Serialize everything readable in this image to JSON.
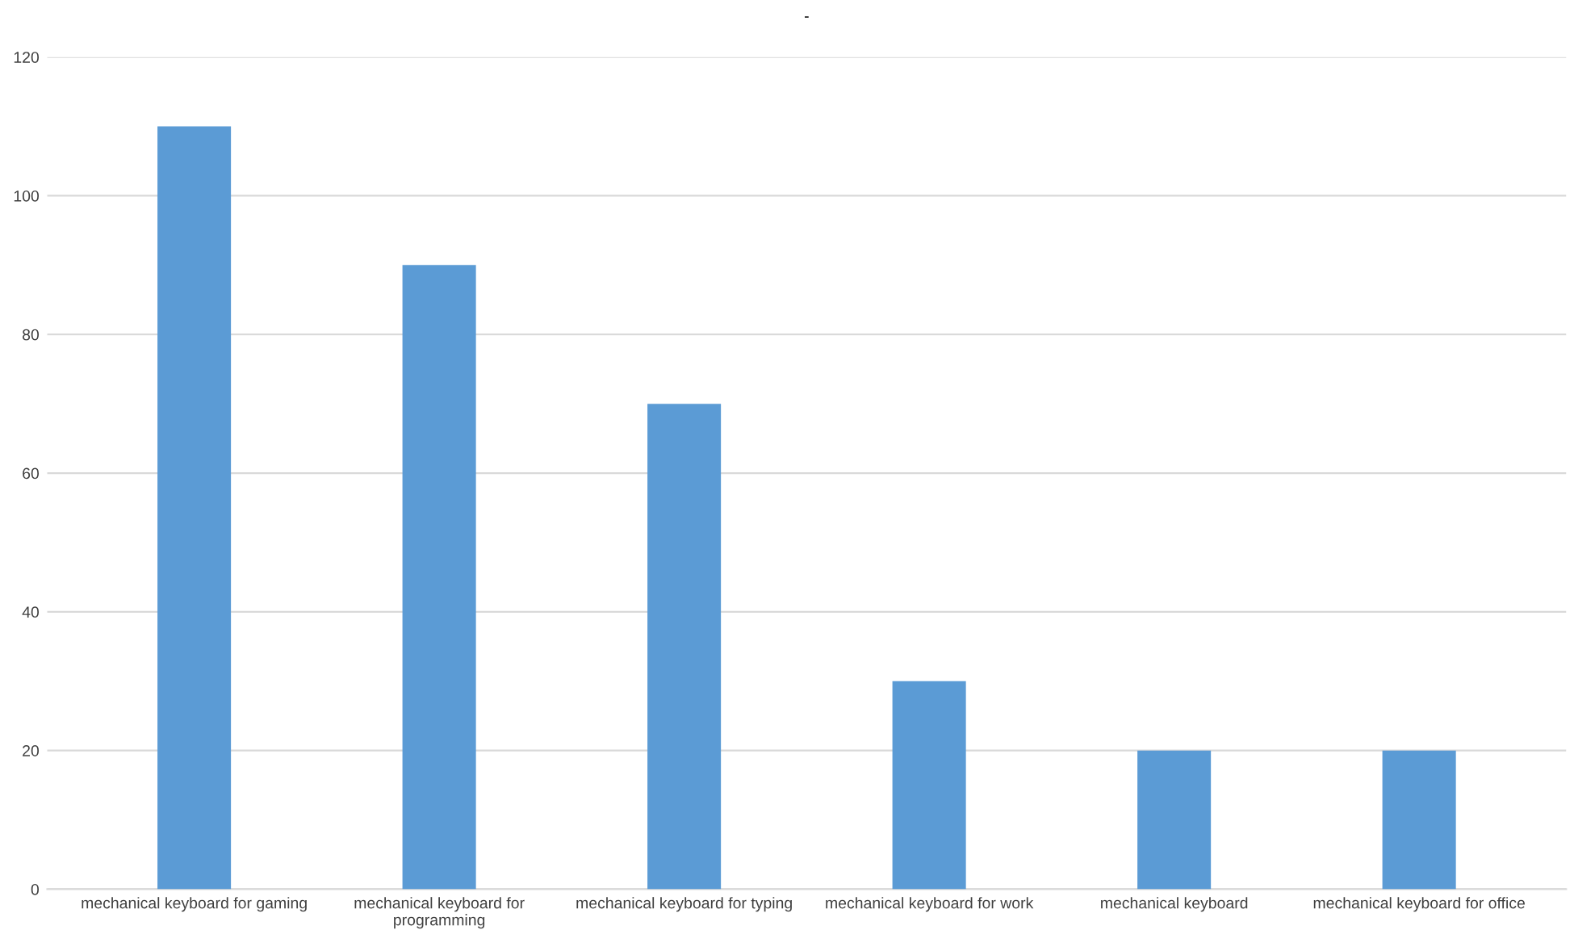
{
  "chart_data": {
    "type": "bar",
    "title": "-",
    "categories": [
      "mechanical keyboard for gaming",
      "mechanical keyboard for programming",
      "mechanical keyboard for typing",
      "mechanical keyboard for work",
      "mechanical keyboard",
      "mechanical keyboard for office"
    ],
    "values": [
      110,
      90,
      70,
      30,
      20,
      20
    ],
    "color": "#5b9bd5",
    "ylim": [
      0,
      120
    ],
    "yticks": [
      0,
      20,
      40,
      60,
      80,
      100,
      120
    ],
    "grid": "y"
  }
}
